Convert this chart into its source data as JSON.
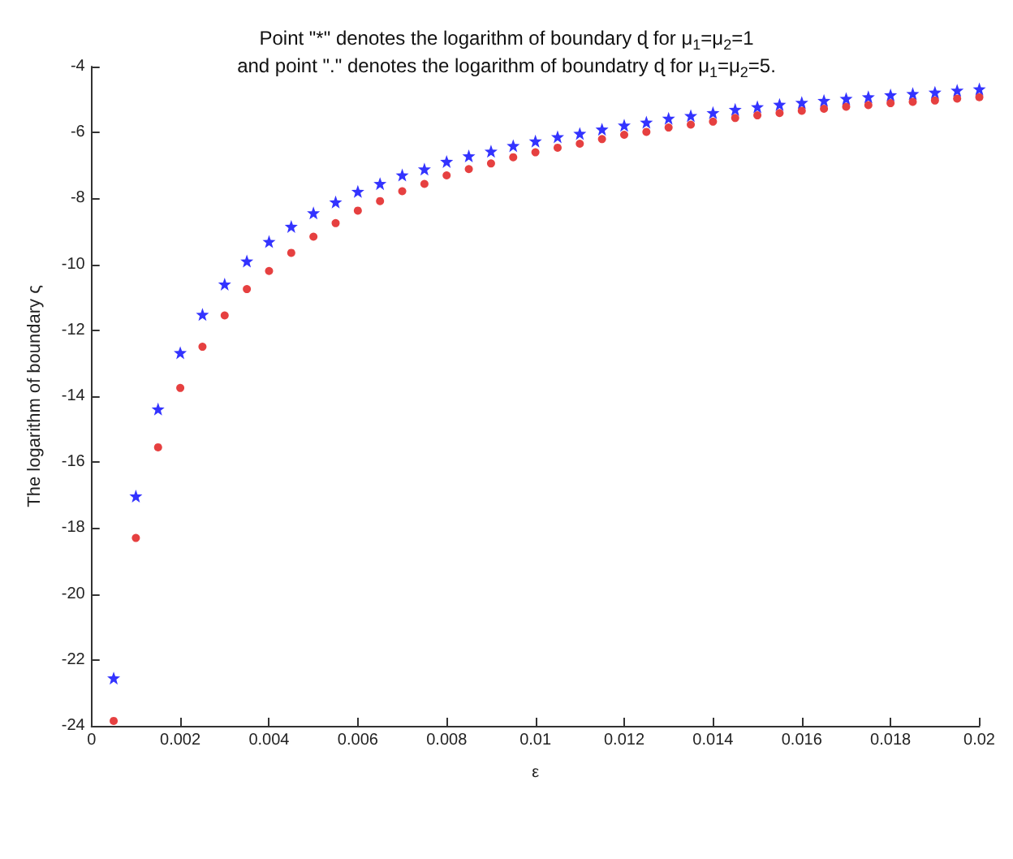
{
  "chart_data": {
    "type": "scatter",
    "title": "Point \"*\" denotes the logarithm of boundary ɖ for μ$_{1}$=μ$_{2}$=1\nand point \".\" denotes the logarithm of boundatry ɖ for μ$_{1}$=μ$_{2}$=5.",
    "xlabel": "ε",
    "ylabel": "The logarithm of boundary ς",
    "x": [
      0.0005,
      0.001,
      0.0015,
      0.002,
      0.0025,
      0.003,
      0.0035,
      0.004,
      0.0045,
      0.005,
      0.0055,
      0.006,
      0.0065,
      0.007,
      0.0075,
      0.008,
      0.0085,
      0.009,
      0.0095,
      0.01,
      0.0105,
      0.011,
      0.0115,
      0.012,
      0.0125,
      0.013,
      0.0135,
      0.014,
      0.0145,
      0.015,
      0.0155,
      0.016,
      0.0165,
      0.017,
      0.0175,
      0.018,
      0.0185,
      0.019,
      0.0195,
      0.02
    ],
    "series": [
      {
        "color": "#0000ff",
        "marker": "star",
        "values": [
          -22.55,
          -17.03,
          -14.39,
          -12.68,
          -11.52,
          -10.6,
          -9.9,
          -9.31,
          -8.85,
          -8.44,
          -8.11,
          -7.79,
          -7.55,
          -7.29,
          -7.11,
          -6.88,
          -6.71,
          -6.57,
          -6.4,
          -6.26,
          -6.13,
          -6.03,
          -5.9,
          -5.78,
          -5.69,
          -5.57,
          -5.49,
          -5.4,
          -5.3,
          -5.22,
          -5.15,
          -5.09,
          -5.03,
          -4.97,
          -4.92,
          -4.86,
          -4.82,
          -4.78,
          -4.72,
          -4.68
        ]
      },
      {
        "color": "#e01010",
        "marker": "circle",
        "values": [
          -23.85,
          -18.3,
          -15.55,
          -13.75,
          -12.5,
          -11.55,
          -10.75,
          -10.2,
          -9.65,
          -9.16,
          -8.75,
          -8.37,
          -8.08,
          -7.78,
          -7.56,
          -7.3,
          -7.11,
          -6.94,
          -6.75,
          -6.6,
          -6.46,
          -6.34,
          -6.2,
          -6.07,
          -5.98,
          -5.85,
          -5.76,
          -5.67,
          -5.56,
          -5.48,
          -5.41,
          -5.34,
          -5.28,
          -5.22,
          -5.17,
          -5.11,
          -5.07,
          -5.03,
          -4.97,
          -4.93
        ]
      }
    ],
    "xlim": [
      0,
      0.02
    ],
    "xticks": [
      0,
      0.002,
      0.004,
      0.006,
      0.008,
      0.01,
      0.012,
      0.014,
      0.016,
      0.018,
      0.02
    ],
    "ylim": [
      -24,
      -4
    ],
    "yticks": [
      -24,
      -22,
      -20,
      -18,
      -16,
      -14,
      -12,
      -10,
      -8,
      -6,
      -4
    ],
    "grid": false
  }
}
